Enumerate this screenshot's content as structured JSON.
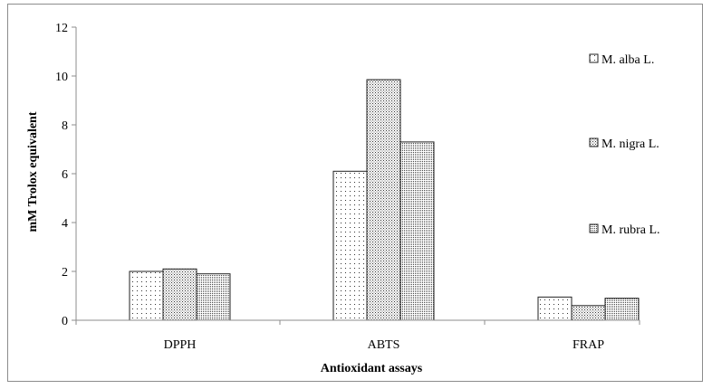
{
  "chart_data": {
    "type": "bar",
    "categories": [
      "DPPH",
      "ABTS",
      "FRAP"
    ],
    "series": [
      {
        "name": "M. alba L.",
        "values": [
          2.0,
          6.1,
          0.95
        ],
        "pattern": "sparse-dots"
      },
      {
        "name": "M. nigra L.",
        "values": [
          2.1,
          9.85,
          0.6
        ],
        "pattern": "dense-dots"
      },
      {
        "name": "M. rubra L.",
        "values": [
          1.9,
          7.3,
          0.9
        ],
        "pattern": "grid-dots"
      }
    ],
    "xlabel": "Antioxidant  assays",
    "ylabel": "mM  Trolox  equivalent",
    "ylim": [
      0,
      12
    ],
    "yticks": [
      0,
      2,
      4,
      6,
      8,
      10,
      12
    ],
    "grid": false,
    "legend_position": "right"
  }
}
